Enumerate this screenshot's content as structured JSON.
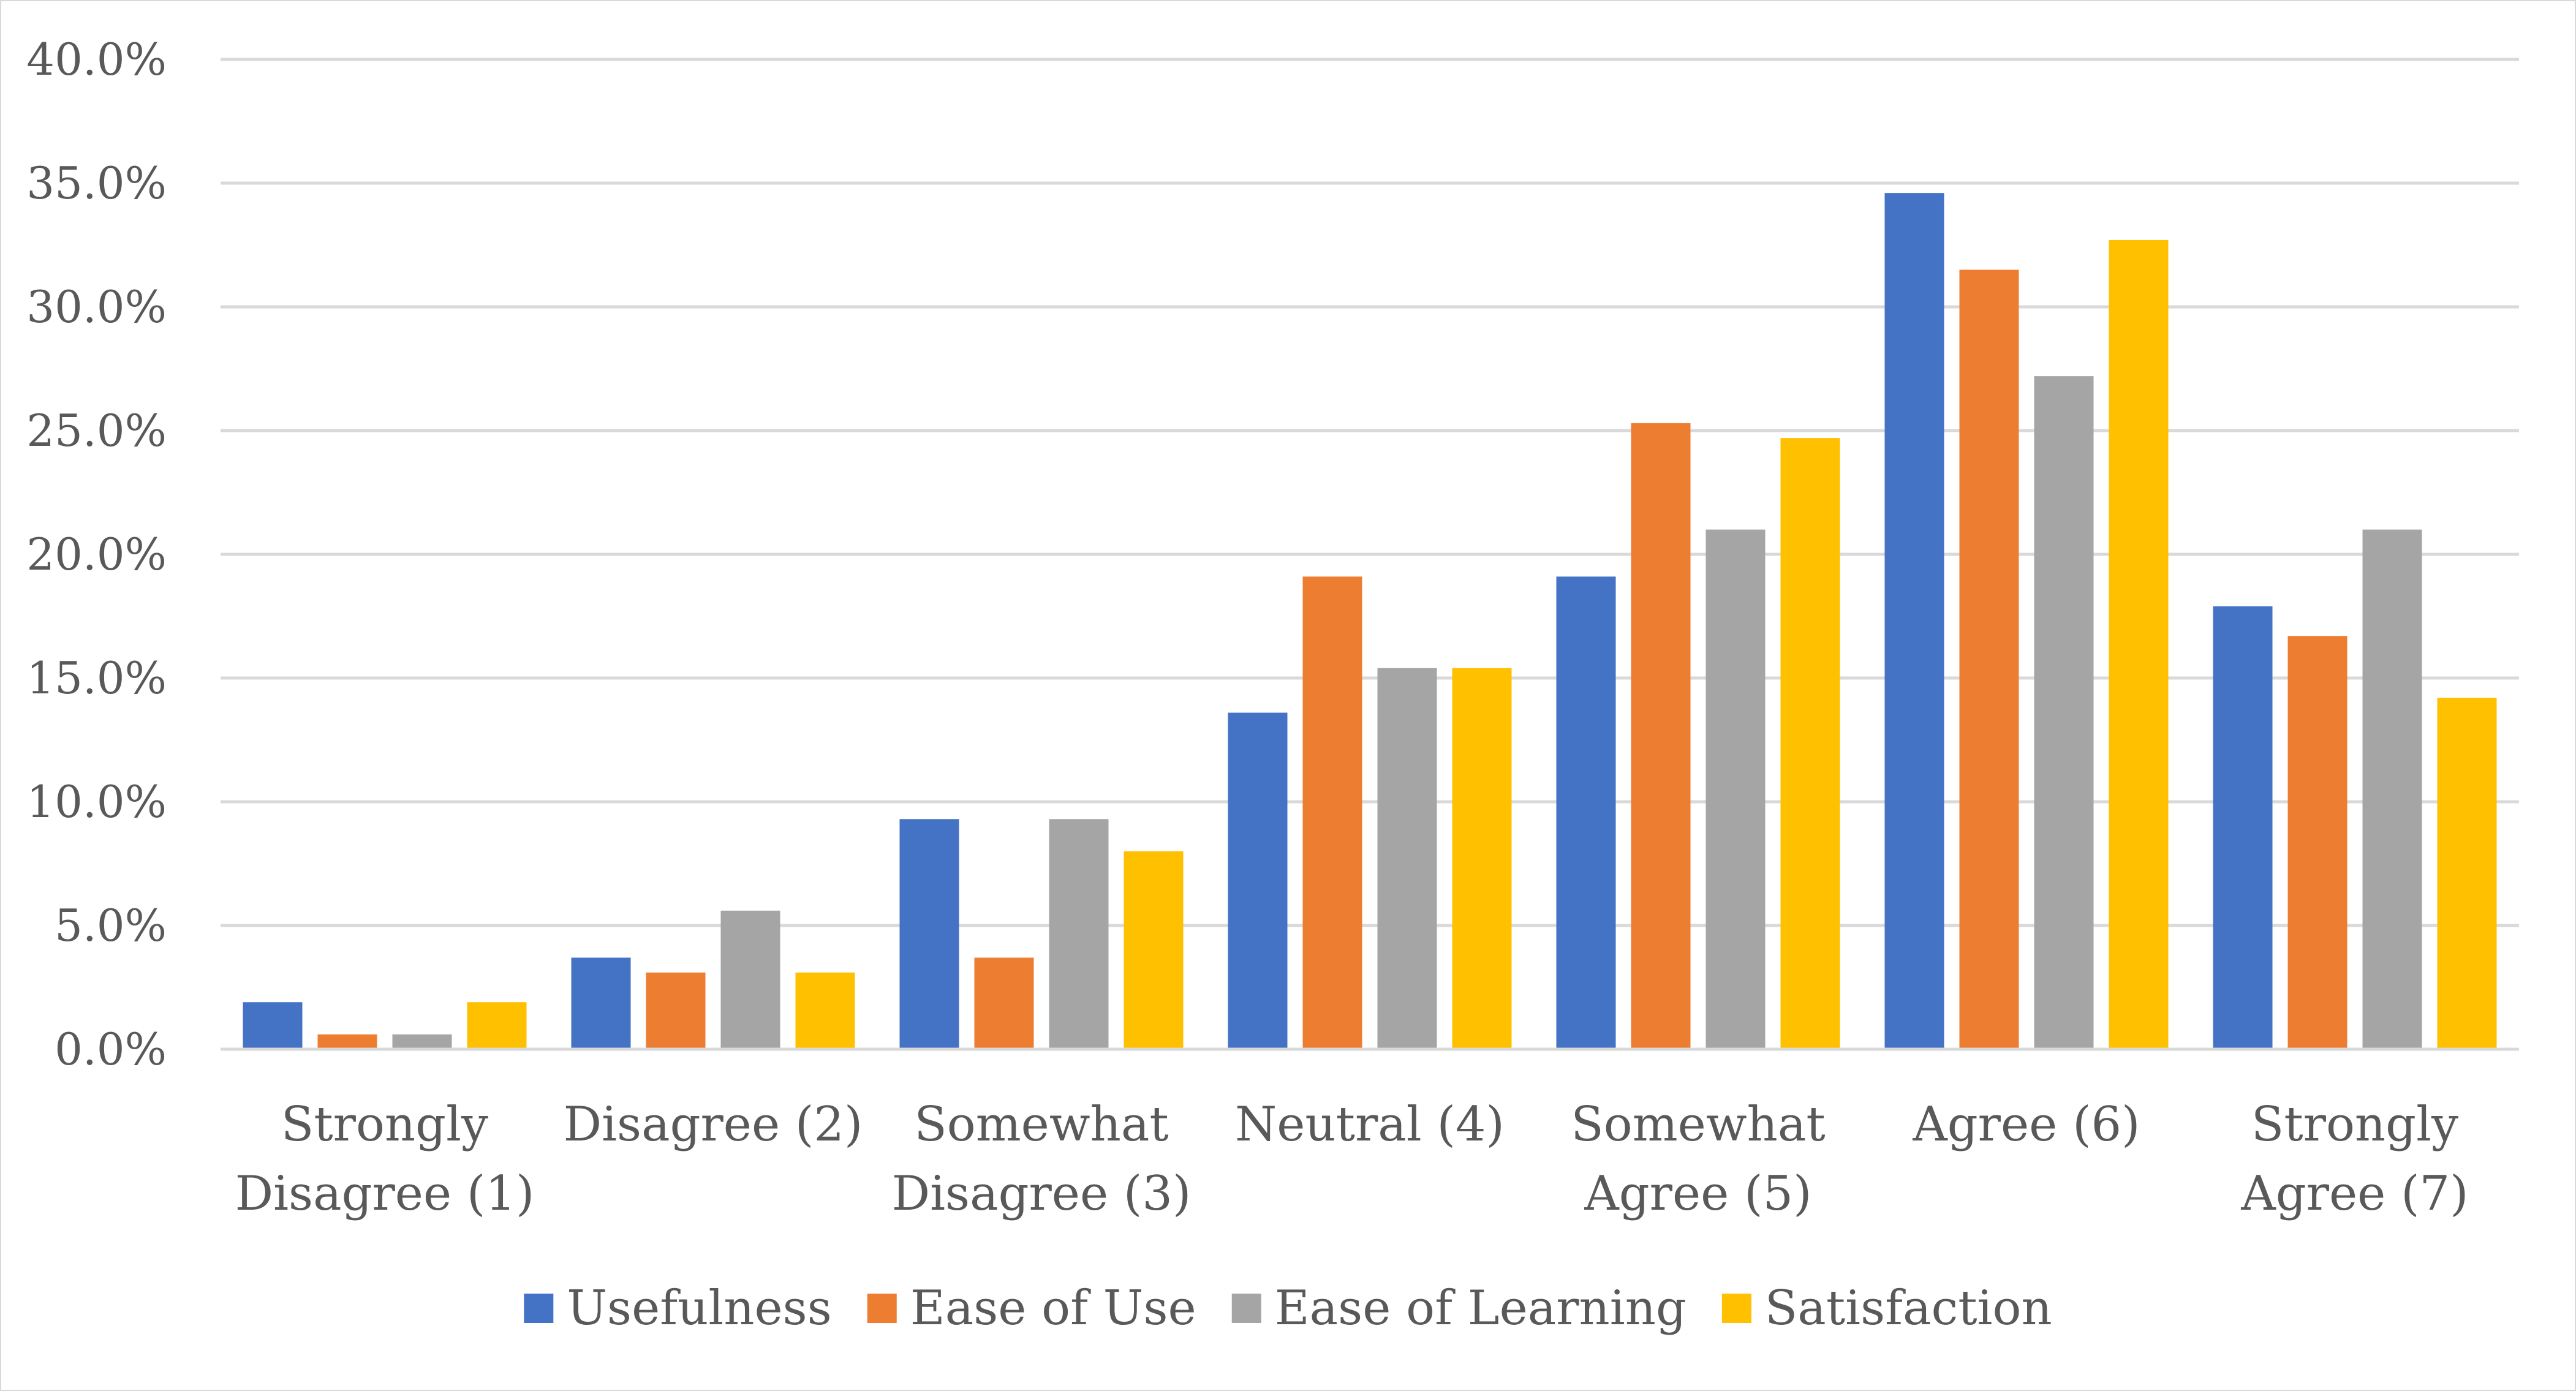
{
  "chart_data": {
    "type": "bar",
    "title": "",
    "xlabel": "",
    "ylabel": "",
    "ylim": [
      0,
      40
    ],
    "yticks": [
      "0.0%",
      "5.0%",
      "10.0%",
      "15.0%",
      "20.0%",
      "25.0%",
      "30.0%",
      "35.0%",
      "40.0%"
    ],
    "ytick_values": [
      0,
      5,
      10,
      15,
      20,
      25,
      30,
      35,
      40
    ],
    "grid": true,
    "legend_position": "bottom",
    "categories": [
      [
        "Strongly",
        "Disagree (1)"
      ],
      [
        "Disagree (2)"
      ],
      [
        "Somewhat",
        "Disagree (3)"
      ],
      [
        "Neutral (4)"
      ],
      [
        "Somewhat",
        "Agree (5)"
      ],
      [
        "Agree (6)"
      ],
      [
        "Strongly",
        "Agree (7)"
      ]
    ],
    "series": [
      {
        "name": "Usefulness",
        "color": "#4472C4",
        "values": [
          1.9,
          3.7,
          9.3,
          13.6,
          19.1,
          34.6,
          17.9
        ]
      },
      {
        "name": "Ease of Use",
        "color": "#ED7D31",
        "values": [
          0.6,
          3.1,
          3.7,
          19.1,
          25.3,
          31.5,
          16.7
        ]
      },
      {
        "name": "Ease of Learning",
        "color": "#A5A5A5",
        "values": [
          0.6,
          5.6,
          9.3,
          15.4,
          21.0,
          27.2,
          21.0
        ]
      },
      {
        "name": "Satisfaction",
        "color": "#FFC000",
        "values": [
          1.9,
          3.1,
          8.0,
          15.4,
          24.7,
          32.7,
          14.2
        ]
      }
    ]
  }
}
